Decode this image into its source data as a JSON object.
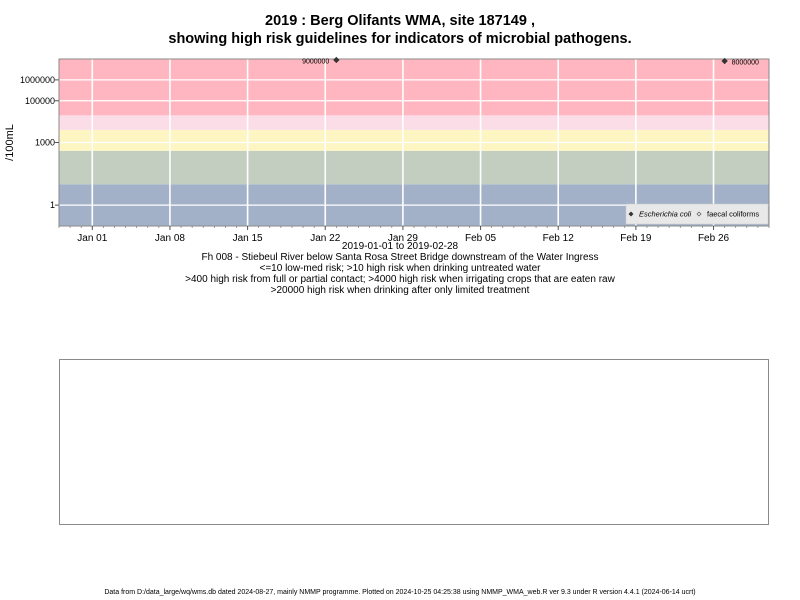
{
  "title": {
    "line1": "2019 : Berg Olifants WMA, site 187149 ,",
    "line2": "showing high risk guidelines for indicators of microbial pathogens."
  },
  "chart_data": {
    "type": "scatter",
    "ylabel": "/100mL",
    "yscale": "log",
    "ylim": [
      0.1,
      10000000
    ],
    "xlim": [
      "2018-12-29",
      "2019-03-03"
    ],
    "y_ticks": [
      1,
      1000,
      100000,
      1000000
    ],
    "y_tick_labels": [
      "1",
      "1000",
      "100000",
      "1000000"
    ],
    "x_ticks": [
      "2019-01-01",
      "2019-01-08",
      "2019-01-15",
      "2019-01-22",
      "2019-01-29",
      "2019-02-05",
      "2019-02-12",
      "2019-02-19",
      "2019-02-26"
    ],
    "x_tick_labels": [
      "Jan 01",
      "Jan 08",
      "Jan 15",
      "Jan 22",
      "Jan 29",
      "Feb 05",
      "Feb 12",
      "Feb 19",
      "Feb 26"
    ],
    "bands": [
      {
        "from": 0.1,
        "to": 10,
        "color": "#a3b1c8"
      },
      {
        "from": 10,
        "to": 400,
        "color": "#c3cec0"
      },
      {
        "from": 400,
        "to": 4000,
        "color": "#fdf5c2"
      },
      {
        "from": 4000,
        "to": 20000,
        "color": "#fbdde8"
      },
      {
        "from": 20000,
        "to": 10000000,
        "color": "#ffb6c0"
      }
    ],
    "series": [
      {
        "name": "Escherichia coli",
        "marker": "diamond",
        "color": "#333333",
        "points": [
          {
            "x": "2019-01-23",
            "y": 9000000,
            "label": "9000000"
          },
          {
            "x": "2019-02-27",
            "y": 8000000,
            "label": "8000000"
          }
        ]
      },
      {
        "name": "faecal coliforms",
        "marker": "open-diamond",
        "color": "#555555",
        "points": []
      }
    ],
    "legend_position": "bottom-right",
    "grid": true
  },
  "captions": {
    "date_range": "2019-01-01 to 2019-02-28",
    "site_description": "Fh 008 - Stiebeul River below Santa Rosa Street Bridge downstream of the Water Ingress",
    "guideline1": "<=10 low-med risk; >10 high risk when drinking untreated water",
    "guideline2": ">400 high risk from full or partial contact; >4000 high risk when irrigating crops that are eaten raw",
    "guideline3": ">20000 high risk when drinking after only limited treatment"
  },
  "footer": "Data from D:/data_large/wq/wms.db dated 2024-08-27, mainly NMMP programme. Plotted on 2024-10-25 04:25:38 using NMMP_WMA_web.R ver 9.3 under R version 4.4.1 (2024-06-14 ucrt)"
}
